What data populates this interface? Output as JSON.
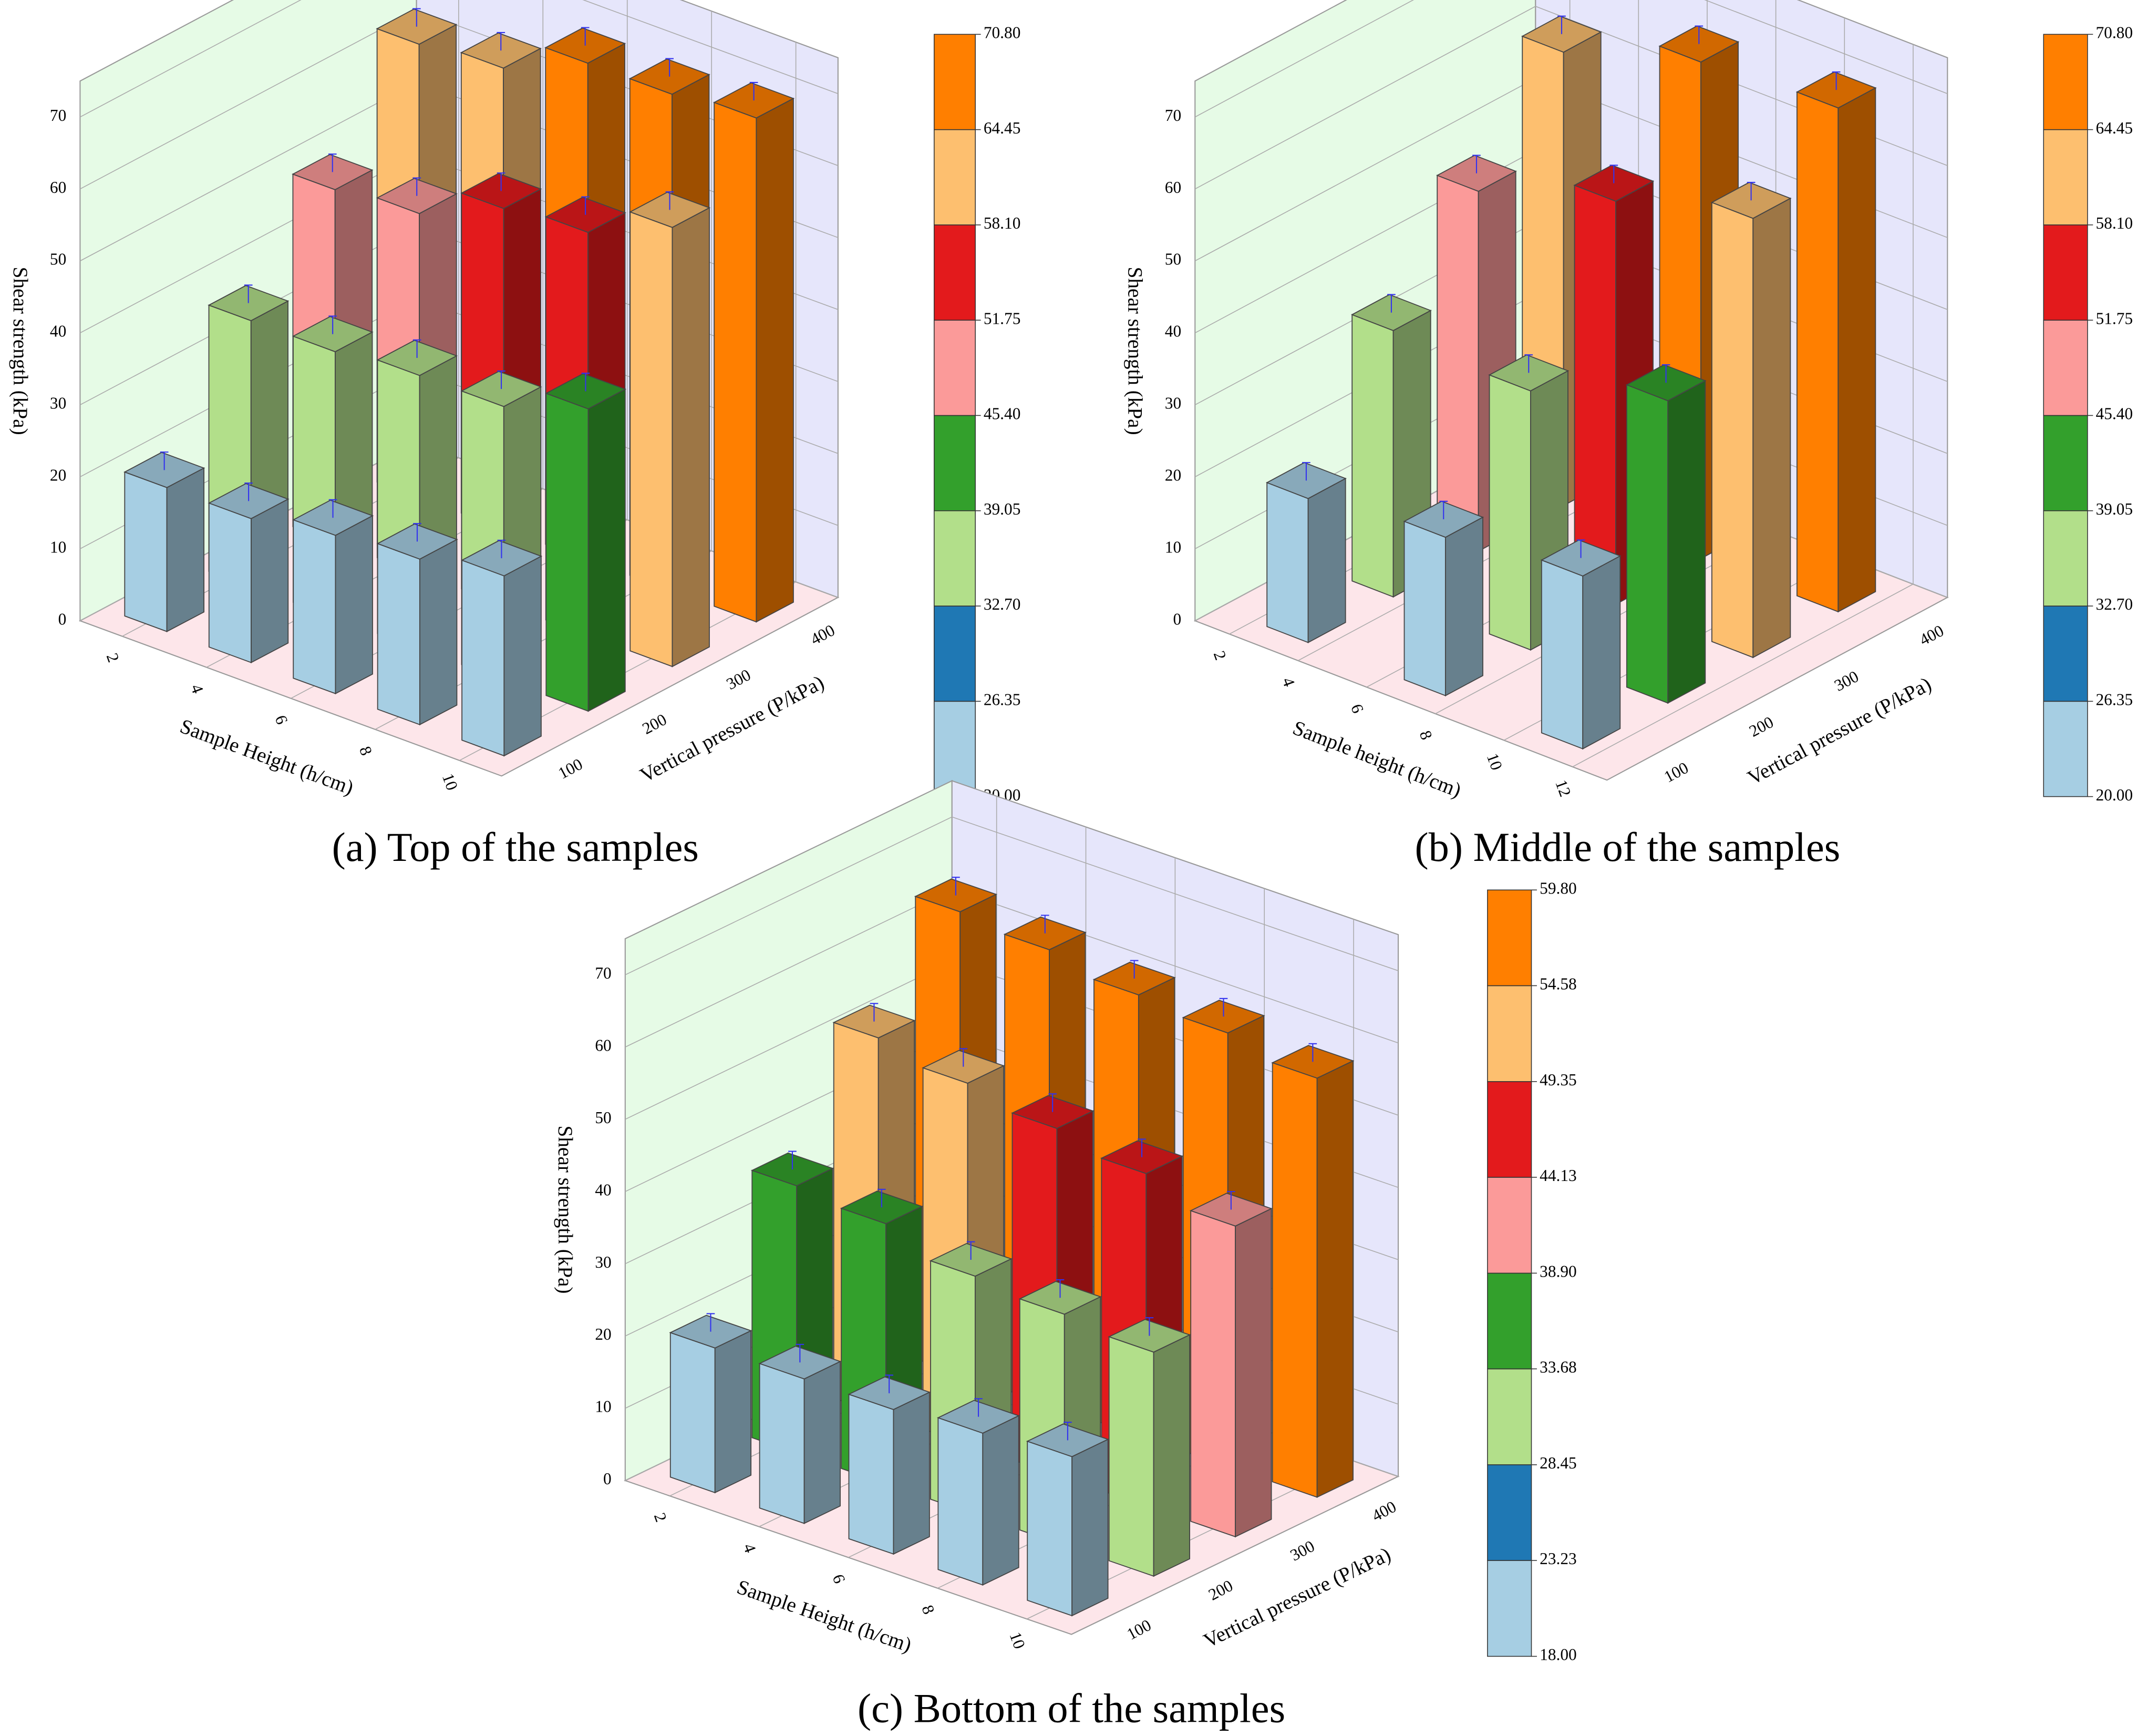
{
  "chart_data": [
    {
      "type": "bar3d",
      "caption": "(a) Top of the samples",
      "xlabel": "Sample Height (h/cm)",
      "ylabel": "Vertical pressure (P/kPa)",
      "zlabel": "Shear strength (kPa)",
      "x": [
        2,
        4,
        6,
        8,
        10
      ],
      "xlim": [
        1,
        11
      ],
      "xticks": [
        2,
        4,
        6,
        8,
        10
      ],
      "zlim": [
        0,
        75
      ],
      "zticks": [
        0,
        10,
        20,
        30,
        40,
        50,
        60,
        70
      ],
      "series": [
        {
          "name": "100",
          "values": [
            20,
            20,
            22,
            23,
            25
          ],
          "errors": [
            2.5,
            2.5,
            2.5,
            2.5,
            2.5
          ]
        },
        {
          "name": "200",
          "values": [
            37,
            37,
            38,
            38,
            42
          ],
          "errors": [
            2.5,
            2.5,
            2.5,
            2.5,
            2.5
          ]
        },
        {
          "name": "300",
          "values": [
            49,
            50,
            55,
            56,
            61
          ],
          "errors": [
            2.5,
            2.5,
            2.5,
            2.5,
            2.5
          ]
        },
        {
          "name": "400",
          "values": [
            63,
            64,
            69,
            69,
            70
          ],
          "errors": [
            2.5,
            2.5,
            2.5,
            2.5,
            2.5
          ]
        }
      ],
      "colorbar": {
        "levels": [
          {
            "value": 20,
            "label": "20.00"
          },
          {
            "value": 26.35,
            "label": "26.35"
          },
          {
            "value": 32.7,
            "label": "32.70"
          },
          {
            "value": 39.05,
            "label": "39.05"
          },
          {
            "value": 45.4,
            "label": "45.40"
          },
          {
            "value": 51.75,
            "label": "51.75"
          },
          {
            "value": 58.1,
            "label": "58.10"
          },
          {
            "value": 64.45,
            "label": "64.45"
          },
          {
            "value": 70.8,
            "label": "70.80"
          }
        ],
        "colors": [
          "#a6cee3",
          "#1f78b4",
          "#b2df8a",
          "#33a02c",
          "#fb9a99",
          "#e31a1c",
          "#fdbf6f",
          "#ff7f00"
        ]
      }
    },
    {
      "type": "bar3d",
      "caption": "(b) Middle of the samples",
      "xlabel": "Sample height (h/cm)",
      "ylabel": "Vertical pressure (P/kPa)",
      "zlabel": "Shear strength (kPa)",
      "x": [
        3,
        7,
        11
      ],
      "xlim": [
        1,
        13
      ],
      "xticks": [
        2,
        4,
        6,
        8,
        10,
        12
      ],
      "zlim": [
        0,
        75
      ],
      "zticks": [
        0,
        10,
        20,
        30,
        40,
        50,
        60,
        70
      ],
      "series": [
        {
          "name": "100",
          "values": [
            20,
            22,
            24
          ],
          "errors": [
            2.5,
            2.5,
            2.5
          ]
        },
        {
          "name": "200",
          "values": [
            37,
            36,
            42
          ],
          "errors": [
            2.5,
            2.5,
            2.5
          ]
        },
        {
          "name": "300",
          "values": [
            50,
            56,
            61
          ],
          "errors": [
            2.5,
            2.5,
            2.5
          ]
        },
        {
          "name": "400",
          "values": [
            63,
            69,
            70
          ],
          "errors": [
            2.5,
            2.5,
            2.5
          ]
        }
      ],
      "colorbar": {
        "levels": [
          {
            "value": 20,
            "label": "20.00"
          },
          {
            "value": 26.35,
            "label": "26.35"
          },
          {
            "value": 32.7,
            "label": "32.70"
          },
          {
            "value": 39.05,
            "label": "39.05"
          },
          {
            "value": 45.4,
            "label": "45.40"
          },
          {
            "value": 51.75,
            "label": "51.75"
          },
          {
            "value": 58.1,
            "label": "58.10"
          },
          {
            "value": 64.45,
            "label": "64.45"
          },
          {
            "value": 70.8,
            "label": "70.80"
          }
        ],
        "colors": [
          "#a6cee3",
          "#1f78b4",
          "#b2df8a",
          "#33a02c",
          "#fb9a99",
          "#e31a1c",
          "#fdbf6f",
          "#ff7f00"
        ]
      }
    },
    {
      "type": "bar3d",
      "caption": "(c) Bottom of the samples",
      "xlabel": "Sample Height (h/cm)",
      "ylabel": "Vertical pressure (P/kPa)",
      "zlabel": "Shear strength (kPa)",
      "x": [
        2,
        4,
        6,
        8,
        10
      ],
      "xlim": [
        1,
        11
      ],
      "xticks": [
        2,
        4,
        6,
        8,
        10
      ],
      "zlim": [
        0,
        75
      ],
      "zticks": [
        0,
        10,
        20,
        30,
        40,
        50,
        60,
        70
      ],
      "series": [
        {
          "name": "100",
          "values": [
            20,
            20,
            20,
            21,
            22
          ],
          "errors": [
            2.5,
            2.5,
            2.5,
            2.5,
            2.5
          ]
        },
        {
          "name": "200",
          "values": [
            37,
            36,
            33,
            32,
            31
          ],
          "errors": [
            2.5,
            2.5,
            2.5,
            2.5,
            2.5
          ]
        },
        {
          "name": "300",
          "values": [
            52,
            50,
            48,
            46,
            43
          ],
          "errors": [
            2.5,
            2.5,
            2.5,
            2.5,
            2.5
          ]
        },
        {
          "name": "400",
          "values": [
            64,
            63,
            61,
            60,
            58
          ],
          "errors": [
            2.5,
            2.5,
            2.5,
            2.5,
            2.5
          ]
        }
      ],
      "colorbar": {
        "levels": [
          {
            "value": 18,
            "label": "18.00"
          },
          {
            "value": 23.23,
            "label": "23.23"
          },
          {
            "value": 28.45,
            "label": "28.45"
          },
          {
            "value": 33.68,
            "label": "33.68"
          },
          {
            "value": 38.9,
            "label": "38.90"
          },
          {
            "value": 44.13,
            "label": "44.13"
          },
          {
            "value": 49.35,
            "label": "49.35"
          },
          {
            "value": 54.58,
            "label": "54.58"
          },
          {
            "value": 59.8,
            "label": "59.80"
          }
        ],
        "colors": [
          "#a6cee3",
          "#1f78b4",
          "#b2df8a",
          "#33a02c",
          "#fb9a99",
          "#e31a1c",
          "#fdbf6f",
          "#ff7f00"
        ]
      }
    }
  ]
}
